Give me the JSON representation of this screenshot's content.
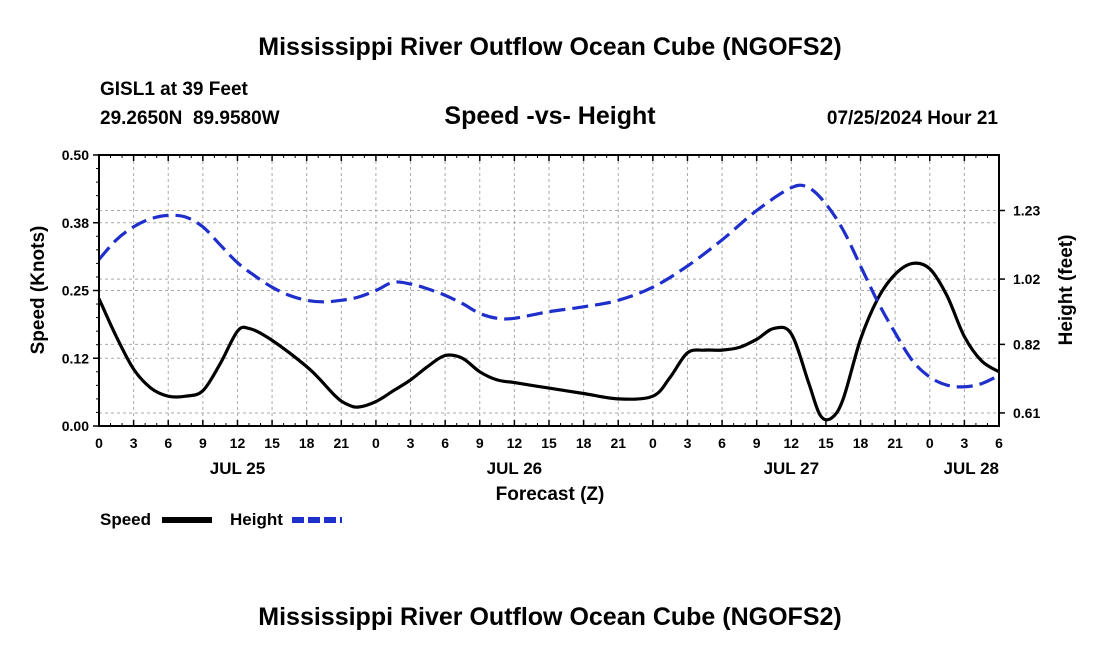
{
  "chart_data": {
    "type": "line",
    "title": "Mississippi River Outflow Ocean Cube (NGOFS2)",
    "station": "GISL1 at 39 Feet",
    "location": "29.2650N  89.9580W",
    "subtitle": "Speed -vs- Height",
    "timestamp": "07/25/2024 Hour 21",
    "footer_title": "Mississippi River Outflow Ocean Cube (NGOFS2)",
    "xlabel": "Forecast (Z)",
    "ylabel": "Speed (Knots)",
    "y2label": "Height (feet)",
    "xlim": [
      0,
      78
    ],
    "ylim": [
      0,
      0.5
    ],
    "y2lim": [
      0.57,
      1.4
    ],
    "x_ticks": [
      0,
      3,
      6,
      9,
      12,
      15,
      18,
      21,
      24,
      27,
      30,
      33,
      36,
      39,
      42,
      45,
      48,
      51,
      54,
      57,
      60,
      63,
      66,
      69,
      72,
      75,
      78
    ],
    "x_tick_labels": [
      "0",
      "3",
      "6",
      "9",
      "12",
      "15",
      "18",
      "21",
      "0",
      "3",
      "6",
      "9",
      "12",
      "15",
      "18",
      "21",
      "0",
      "3",
      "6",
      "9",
      "12",
      "15",
      "18",
      "21",
      "0",
      "3",
      "6"
    ],
    "date_labels": [
      {
        "label": "JUL 25",
        "x": 12
      },
      {
        "label": "JUL 26",
        "x": 36
      },
      {
        "label": "JUL 27",
        "x": 60
      },
      {
        "label": "JUL 28",
        "x": 78
      }
    ],
    "y_ticks": [
      0,
      0.125,
      0.25,
      0.375,
      0.5
    ],
    "y_tick_labels": [
      "0.00",
      "0.12",
      "0.25",
      "0.38",
      "0.50"
    ],
    "y2_ticks": [
      0.61,
      0.82,
      1.02,
      1.23
    ],
    "y2_tick_labels": [
      "0.61",
      "0.82",
      "1.02",
      "1.23"
    ],
    "grid": true,
    "series": [
      {
        "name": "Speed",
        "axis": "left",
        "color": "#000000",
        "dash": "solid",
        "x": [
          0,
          1.5,
          3,
          4.5,
          6,
          7.5,
          9,
          10.5,
          12,
          13,
          14.5,
          16.5,
          18.5,
          20.5,
          21.5,
          22.5,
          24,
          25.5,
          27,
          28.5,
          30,
          31.5,
          33,
          34.5,
          36,
          39,
          42,
          45,
          48,
          49.5,
          51,
          52.5,
          54,
          55.5,
          57,
          58.5,
          60,
          61.5,
          62.5,
          63.5,
          64.5,
          66,
          67.5,
          69,
          70.5,
          72,
          73.5,
          75,
          76.5,
          78
        ],
        "values": [
          0.235,
          0.165,
          0.105,
          0.07,
          0.055,
          0.055,
          0.065,
          0.115,
          0.175,
          0.18,
          0.165,
          0.135,
          0.1,
          0.055,
          0.04,
          0.035,
          0.045,
          0.065,
          0.085,
          0.11,
          0.13,
          0.125,
          0.1,
          0.085,
          0.08,
          0.07,
          0.06,
          0.05,
          0.055,
          0.09,
          0.135,
          0.14,
          0.14,
          0.145,
          0.16,
          0.18,
          0.17,
          0.08,
          0.02,
          0.015,
          0.05,
          0.16,
          0.235,
          0.28,
          0.3,
          0.29,
          0.24,
          0.165,
          0.12,
          0.1
        ]
      },
      {
        "name": "Height",
        "axis": "right",
        "color": "#1f2fcc",
        "dash": "dashed",
        "x": [
          0,
          1.5,
          3,
          4.5,
          6,
          7.5,
          9,
          10.5,
          12,
          13.5,
          15,
          16.5,
          18,
          19.5,
          21,
          22.5,
          24,
          25.5,
          27,
          28.5,
          30,
          31.5,
          33,
          34.5,
          36,
          39,
          42,
          45,
          48,
          51,
          54,
          57,
          60,
          61.5,
          63,
          64.5,
          66,
          67.5,
          69,
          70.5,
          72,
          73.5,
          75,
          76.5,
          78
        ],
        "values": [
          1.08,
          1.14,
          1.18,
          1.205,
          1.215,
          1.21,
          1.18,
          1.125,
          1.07,
          1.03,
          0.995,
          0.97,
          0.955,
          0.95,
          0.955,
          0.965,
          0.985,
          1.01,
          1.005,
          0.99,
          0.97,
          0.945,
          0.915,
          0.9,
          0.9,
          0.92,
          0.935,
          0.955,
          0.995,
          1.06,
          1.14,
          1.23,
          1.3,
          1.3,
          1.25,
          1.17,
          1.06,
          0.95,
          0.855,
          0.77,
          0.72,
          0.695,
          0.69,
          0.7,
          0.725
        ]
      }
    ],
    "legend": {
      "placement": "bottom-left",
      "items": [
        {
          "label": "Speed",
          "color": "#000000",
          "dash": "solid"
        },
        {
          "label": "Height",
          "color": "#1f2fcc",
          "dash": "dashed"
        }
      ]
    }
  }
}
